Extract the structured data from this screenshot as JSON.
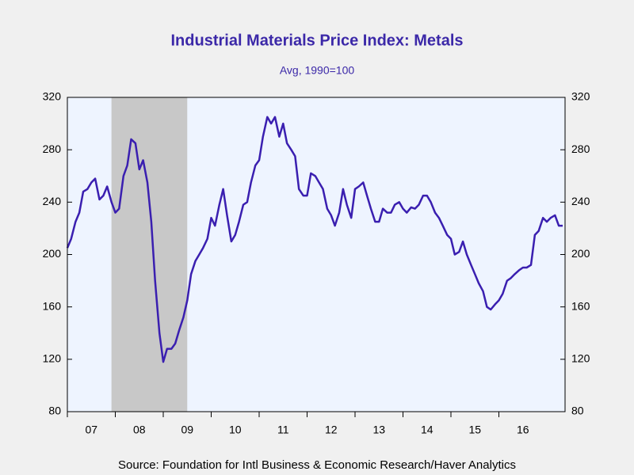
{
  "chart_data": {
    "type": "line",
    "title": "Industrial Materials Price Index: Metals",
    "subtitle": "Avg, 1990=100",
    "source": "Source:  Foundation for Intl Business & Economic Research/Haver Analytics",
    "x": [
      2007.0,
      2007.08,
      2007.17,
      2007.25,
      2007.33,
      2007.42,
      2007.5,
      2007.58,
      2007.67,
      2007.75,
      2007.83,
      2007.92,
      2008.0,
      2008.08,
      2008.17,
      2008.25,
      2008.33,
      2008.42,
      2008.5,
      2008.58,
      2008.67,
      2008.75,
      2008.83,
      2008.92,
      2009.0,
      2009.08,
      2009.17,
      2009.25,
      2009.33,
      2009.42,
      2009.5,
      2009.58,
      2009.67,
      2009.75,
      2009.83,
      2009.92,
      2010.0,
      2010.08,
      2010.17,
      2010.25,
      2010.33,
      2010.42,
      2010.5,
      2010.58,
      2010.67,
      2010.75,
      2010.83,
      2010.92,
      2011.0,
      2011.08,
      2011.17,
      2011.25,
      2011.33,
      2011.42,
      2011.5,
      2011.58,
      2011.67,
      2011.75,
      2011.83,
      2011.92,
      2012.0,
      2012.08,
      2012.17,
      2012.25,
      2012.33,
      2012.42,
      2012.5,
      2012.58,
      2012.67,
      2012.75,
      2012.83,
      2012.92,
      2013.0,
      2013.08,
      2013.17,
      2013.25,
      2013.33,
      2013.42,
      2013.5,
      2013.58,
      2013.67,
      2013.75,
      2013.83,
      2013.92,
      2014.0,
      2014.08,
      2014.17,
      2014.25,
      2014.33,
      2014.42,
      2014.5,
      2014.58,
      2014.67,
      2014.75,
      2014.83,
      2014.92,
      2015.0,
      2015.08,
      2015.17,
      2015.25,
      2015.33,
      2015.42,
      2015.5,
      2015.58,
      2015.67,
      2015.75,
      2015.83,
      2015.92,
      2016.0,
      2016.08,
      2016.17,
      2016.25,
      2016.33,
      2016.42,
      2016.5,
      2016.58,
      2016.67,
      2016.75,
      2016.83,
      2016.92,
      2017.0,
      2017.08,
      2017.17,
      2017.25,
      2017.33
    ],
    "series": [
      {
        "name": "Metals",
        "color": "#3a1fb0",
        "values": [
          205,
          212,
          225,
          232,
          248,
          250,
          255,
          258,
          242,
          245,
          252,
          240,
          232,
          235,
          260,
          268,
          288,
          285,
          265,
          272,
          255,
          225,
          180,
          140,
          118,
          128,
          128,
          132,
          142,
          152,
          165,
          185,
          195,
          200,
          205,
          212,
          228,
          222,
          238,
          250,
          230,
          210,
          215,
          225,
          238,
          240,
          255,
          268,
          272,
          290,
          305,
          300,
          305,
          290,
          300,
          285,
          280,
          275,
          250,
          245,
          245,
          262,
          260,
          255,
          250,
          235,
          230,
          222,
          232,
          250,
          238,
          228,
          250,
          252,
          255,
          245,
          235,
          225,
          225,
          235,
          232,
          232,
          238,
          240,
          235,
          232,
          236,
          235,
          238,
          245,
          245,
          240,
          232,
          228,
          222,
          215,
          212,
          200,
          202,
          210,
          200,
          192,
          185,
          178,
          172,
          160,
          158,
          162,
          165,
          170,
          180,
          182,
          185,
          188,
          190,
          190,
          192,
          215,
          218,
          228,
          225,
          228,
          230,
          222,
          222
        ]
      }
    ],
    "recession": [
      2007.92,
      2009.5
    ],
    "xlim": [
      2007.0,
      2017.38
    ],
    "xticks": [
      {
        "value": 2007,
        "label": "07"
      },
      {
        "value": 2008,
        "label": "08"
      },
      {
        "value": 2009,
        "label": "09"
      },
      {
        "value": 2010,
        "label": "10"
      },
      {
        "value": 2011,
        "label": "11"
      },
      {
        "value": 2012,
        "label": "12"
      },
      {
        "value": 2013,
        "label": "13"
      },
      {
        "value": 2014,
        "label": "14"
      },
      {
        "value": 2015,
        "label": "15"
      },
      {
        "value": 2016,
        "label": "16"
      }
    ],
    "ylim": [
      80,
      320
    ],
    "yticks": [
      80,
      120,
      160,
      200,
      240,
      280,
      320
    ],
    "grid": false
  }
}
